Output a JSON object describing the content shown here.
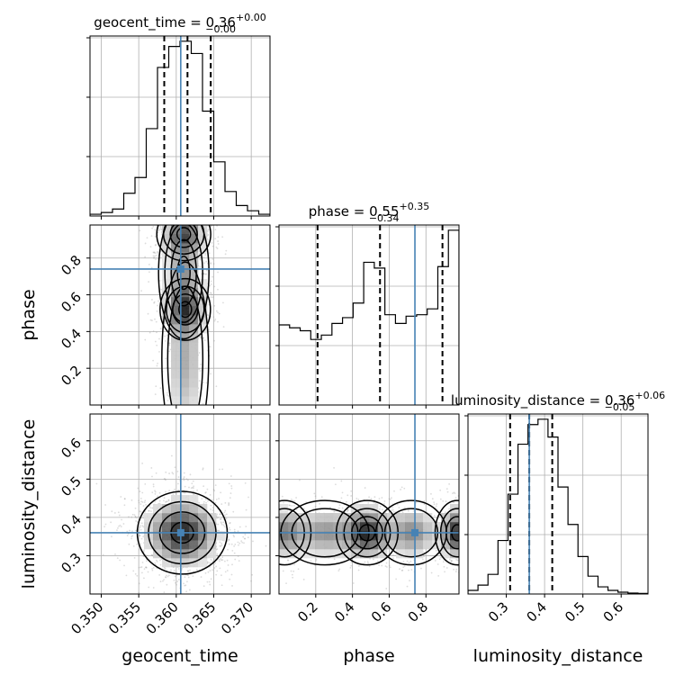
{
  "chart_data": {
    "type": "corner",
    "parameters": [
      "geocent_time",
      "phase",
      "luminosity_distance"
    ],
    "truth_color": "#4682b4",
    "diagonal": [
      {
        "parameter": "geocent_time",
        "title": {
          "base": "geocent_time = 0.36",
          "sup": "+0.00",
          "sub": "−0.00"
        },
        "range": [
          0.3485,
          0.3725
        ],
        "quantiles": [
          0.3584,
          0.3615,
          0.3646
        ],
        "truth": 0.3606,
        "histogram": [
          0.01,
          0.02,
          0.04,
          0.13,
          0.22,
          0.5,
          0.85,
          0.97,
          1.0,
          0.93,
          0.6,
          0.31,
          0.14,
          0.06,
          0.03,
          0.01
        ]
      },
      {
        "parameter": "phase",
        "title": {
          "base": "phase = 0.55",
          "sup": "+0.35",
          "sub": "−0.34"
        },
        "range": [
          0.0,
          0.98
        ],
        "quantiles": [
          0.21,
          0.55,
          0.89
        ],
        "truth": 0.74,
        "histogram": [
          0.55,
          0.53,
          0.51,
          0.45,
          0.48,
          0.56,
          0.6,
          0.7,
          0.98,
          0.94,
          0.62,
          0.56,
          0.61,
          0.62,
          0.66,
          0.95,
          1.2
        ]
      },
      {
        "parameter": "luminosity_distance",
        "title": {
          "base": "luminosity_distance = 0.36",
          "sup": "+0.06",
          "sub": "−0.05"
        },
        "range": [
          0.2,
          0.67
        ],
        "quantiles": [
          0.31,
          0.36,
          0.42
        ],
        "truth": 0.36,
        "histogram": [
          0.02,
          0.05,
          0.11,
          0.3,
          0.56,
          0.84,
          0.95,
          0.98,
          0.88,
          0.6,
          0.39,
          0.21,
          0.1,
          0.04,
          0.02,
          0.01,
          0.005,
          0.003
        ]
      }
    ],
    "ticks": {
      "geocent_time": [
        "0.350",
        "0.355",
        "0.360",
        "0.365",
        "0.370"
      ],
      "phase": [
        "0.2",
        "0.4",
        "0.6",
        "0.8"
      ],
      "luminosity_distance": [
        "0.3",
        "0.4",
        "0.5",
        "0.6"
      ]
    },
    "axis_labels": {
      "x": [
        "geocent_time",
        "phase",
        "luminosity_distance"
      ],
      "y": [
        "phase",
        "luminosity_distance"
      ]
    },
    "grid": true
  }
}
